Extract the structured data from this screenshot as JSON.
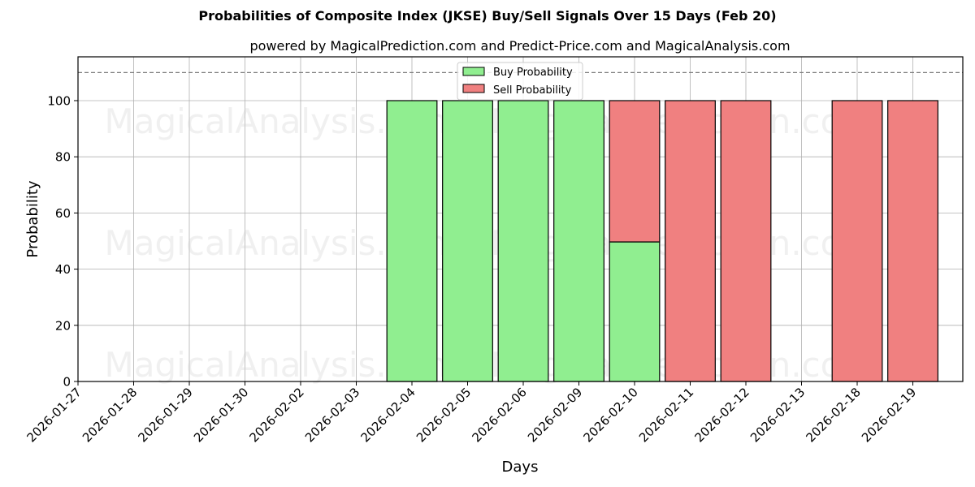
{
  "chart_data": {
    "type": "bar",
    "stacked": true,
    "title": "Probabilities of Composite Index (JKSE) Buy/Sell Signals Over 15 Days (Feb 20)",
    "subtitle": "powered by MagicalPrediction.com and Predict-Price.com and MagicalAnalysis.com",
    "xlabel": "Days",
    "ylabel": "Probability",
    "ylim": [
      0,
      115.6
    ],
    "yticks": [
      0,
      20,
      40,
      60,
      80,
      100
    ],
    "grid": true,
    "reference_line": {
      "y": 110,
      "style": "dashed",
      "color": "#808080"
    },
    "legend_position": "upper center",
    "categories": [
      "2026-01-27",
      "2026-01-28",
      "2026-01-29",
      "2026-01-30",
      "2026-02-02",
      "2026-02-03",
      "2026-02-04",
      "2026-02-05",
      "2026-02-06",
      "2026-02-09",
      "2026-02-10",
      "2026-02-11",
      "2026-02-12",
      "2026-02-13",
      "2026-02-18",
      "2026-02-19"
    ],
    "series": [
      {
        "name": "Buy Probability",
        "color": "#90ee90",
        "values": [
          0,
          0,
          0,
          0,
          0,
          0,
          100,
          100,
          100,
          100,
          49.7,
          0,
          0,
          0,
          0,
          0
        ]
      },
      {
        "name": "Sell Probability",
        "color": "#f08080",
        "values": [
          0,
          0,
          0,
          0,
          0,
          0,
          0,
          0,
          0,
          0,
          50.3,
          100,
          100,
          0,
          100,
          100
        ]
      }
    ]
  },
  "watermarks": [
    "MagicalAnalysis.com",
    "MagicalPrediction.com"
  ]
}
